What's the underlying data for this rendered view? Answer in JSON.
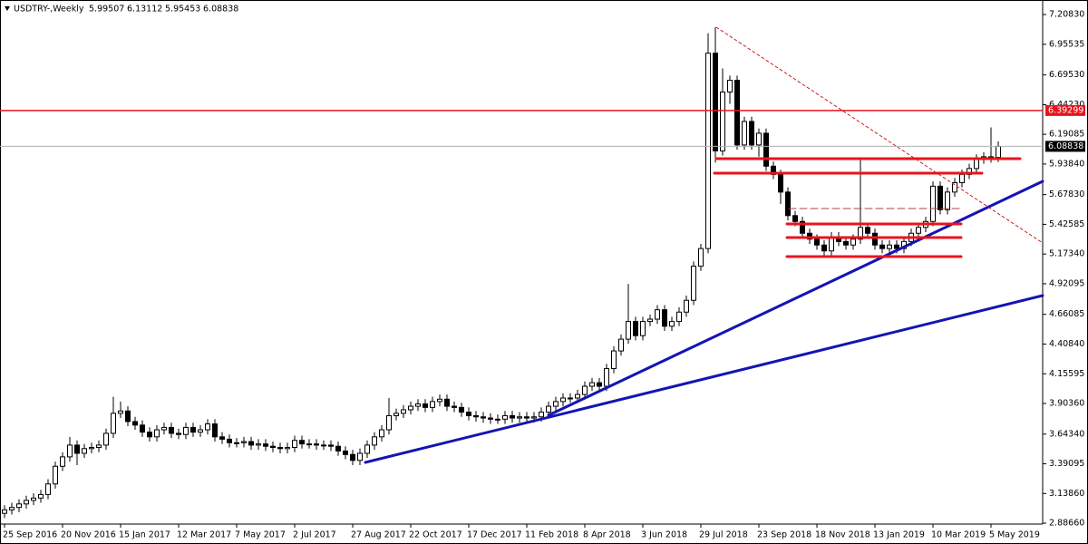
{
  "chart_data": {
    "type": "candlestick",
    "title": "USDTRY-,Weekly",
    "categories": [
      "25 Sep 2016",
      null,
      null,
      null,
      null,
      null,
      null,
      null,
      "20 Nov 2016",
      null,
      null,
      null,
      null,
      null,
      null,
      null,
      "15 Jan 2017",
      null,
      null,
      null,
      null,
      null,
      null,
      null,
      "12 Mar 2017",
      null,
      null,
      null,
      null,
      null,
      null,
      null,
      "7 May 2017",
      null,
      null,
      null,
      null,
      null,
      null,
      null,
      "2 Jul 2017",
      null,
      null,
      null,
      null,
      null,
      null,
      null,
      "27 Aug 2017",
      null,
      null,
      null,
      null,
      null,
      null,
      null,
      "22 Oct 2017",
      null,
      null,
      null,
      null,
      null,
      null,
      null,
      "17 Dec 2017",
      null,
      null,
      null,
      null,
      null,
      null,
      null,
      "11 Feb 2018",
      null,
      null,
      null,
      null,
      null,
      null,
      null,
      "8 Apr 2018",
      null,
      null,
      null,
      null,
      null,
      null,
      null,
      "3 Jun 2018",
      null,
      null,
      null,
      null,
      null,
      null,
      null,
      "29 Jul 2018",
      null,
      null,
      null,
      null,
      null,
      null,
      null,
      "23 Sep 2018",
      null,
      null,
      null,
      null,
      null,
      null,
      null,
      "18 Nov 2018",
      null,
      null,
      null,
      null,
      null,
      null,
      null,
      "13 Jan 2019",
      null,
      null,
      null,
      null,
      null,
      null,
      null,
      "10 Mar 2019",
      null,
      null,
      null,
      null,
      null,
      null,
      null,
      "5 May 2019",
      null
    ],
    "open": [
      2.97,
      3.0,
      3.02,
      3.05,
      3.08,
      3.1,
      3.13,
      3.22,
      3.37,
      3.45,
      3.55,
      3.48,
      3.52,
      3.53,
      3.55,
      3.65,
      3.82,
      3.84,
      3.75,
      3.72,
      3.66,
      3.62,
      3.68,
      3.7,
      3.65,
      3.64,
      3.7,
      3.66,
      3.68,
      3.73,
      3.62,
      3.6,
      3.57,
      3.57,
      3.58,
      3.55,
      3.56,
      3.54,
      3.53,
      3.52,
      3.53,
      3.59,
      3.56,
      3.56,
      3.55,
      3.55,
      3.54,
      3.5,
      3.47,
      3.42,
      3.48,
      3.55,
      3.62,
      3.68,
      3.8,
      3.82,
      3.85,
      3.88,
      3.9,
      3.87,
      3.92,
      3.94,
      3.88,
      3.87,
      3.83,
      3.8,
      3.79,
      3.78,
      3.77,
      3.77,
      3.8,
      3.78,
      3.79,
      3.78,
      3.79,
      3.83,
      3.88,
      3.92,
      3.95,
      3.95,
      3.98,
      4.05,
      4.08,
      4.05,
      4.2,
      4.35,
      4.45,
      4.6,
      4.48,
      4.6,
      4.62,
      4.7,
      4.56,
      4.6,
      4.68,
      4.78,
      5.07,
      5.22,
      6.88,
      6.05,
      6.55,
      6.65,
      6.1,
      6.3,
      6.1,
      6.2,
      5.92,
      5.85,
      5.7,
      5.5,
      5.45,
      5.35,
      5.3,
      5.25,
      5.2,
      5.32,
      5.28,
      5.25,
      5.3,
      5.4,
      5.35,
      5.25,
      5.22,
      5.25,
      5.22,
      5.28,
      5.35,
      5.4,
      5.45,
      5.75,
      5.55,
      5.7,
      5.78,
      5.85,
      5.9,
      5.98,
      6.0,
      5.99507
    ],
    "high": [
      3.04,
      3.06,
      3.09,
      3.12,
      3.14,
      3.17,
      3.26,
      3.41,
      3.49,
      3.62,
      3.59,
      3.56,
      3.57,
      3.59,
      3.69,
      3.96,
      3.92,
      3.88,
      3.79,
      3.76,
      3.7,
      3.72,
      3.74,
      3.74,
      3.69,
      3.74,
      3.74,
      3.72,
      3.77,
      3.77,
      3.66,
      3.64,
      3.61,
      3.62,
      3.62,
      3.6,
      3.6,
      3.58,
      3.57,
      3.57,
      3.63,
      3.63,
      3.6,
      3.6,
      3.59,
      3.59,
      3.58,
      3.54,
      3.51,
      3.52,
      3.59,
      3.66,
      3.72,
      3.95,
      3.86,
      3.89,
      3.92,
      3.94,
      3.94,
      3.96,
      3.98,
      3.98,
      3.92,
      3.91,
      3.87,
      3.84,
      3.83,
      3.82,
      3.81,
      3.84,
      3.84,
      3.83,
      3.83,
      3.83,
      3.87,
      3.92,
      3.96,
      3.99,
      3.99,
      4.02,
      4.09,
      4.12,
      4.12,
      4.24,
      4.39,
      4.49,
      4.92,
      4.64,
      4.64,
      4.66,
      4.74,
      4.74,
      4.64,
      4.72,
      4.82,
      5.11,
      5.26,
      7.05,
      7.1,
      6.75,
      6.69,
      6.69,
      6.34,
      6.34,
      6.24,
      6.24,
      5.96,
      5.89,
      5.74,
      5.54,
      5.49,
      5.39,
      5.34,
      5.29,
      5.36,
      5.36,
      5.32,
      5.34,
      5.98,
      5.44,
      5.39,
      5.29,
      5.29,
      5.29,
      5.32,
      5.39,
      5.44,
      5.49,
      5.79,
      5.79,
      5.74,
      5.82,
      5.89,
      5.94,
      6.02,
      6.04,
      6.25,
      6.13112
    ],
    "low": [
      2.93,
      2.96,
      2.98,
      3.01,
      3.04,
      3.06,
      3.09,
      3.18,
      3.33,
      3.41,
      3.38,
      3.44,
      3.48,
      3.49,
      3.51,
      3.61,
      3.78,
      3.71,
      3.68,
      3.62,
      3.58,
      3.58,
      3.64,
      3.61,
      3.6,
      3.6,
      3.62,
      3.62,
      3.64,
      3.58,
      3.56,
      3.53,
      3.53,
      3.53,
      3.51,
      3.51,
      3.5,
      3.49,
      3.48,
      3.48,
      3.49,
      3.52,
      3.52,
      3.51,
      3.51,
      3.5,
      3.46,
      3.43,
      3.38,
      3.38,
      3.44,
      3.51,
      3.58,
      3.64,
      3.76,
      3.78,
      3.81,
      3.84,
      3.83,
      3.83,
      3.88,
      3.84,
      3.83,
      3.79,
      3.76,
      3.75,
      3.74,
      3.73,
      3.73,
      3.73,
      3.74,
      3.74,
      3.74,
      3.74,
      3.75,
      3.79,
      3.84,
      3.88,
      3.91,
      3.91,
      3.94,
      4.01,
      4.01,
      4.01,
      4.16,
      4.31,
      4.41,
      4.44,
      4.44,
      4.56,
      4.58,
      4.52,
      4.52,
      4.56,
      4.64,
      4.74,
      5.03,
      5.18,
      5.95,
      6.01,
      6.45,
      6.06,
      6.06,
      6.06,
      6.0,
      5.88,
      5.81,
      5.6,
      5.46,
      5.41,
      5.31,
      5.26,
      5.21,
      5.14,
      5.16,
      5.24,
      5.21,
      5.21,
      5.26,
      5.31,
      5.21,
      5.18,
      5.18,
      5.18,
      5.18,
      5.24,
      5.31,
      5.36,
      5.41,
      5.51,
      5.51,
      5.66,
      5.74,
      5.81,
      5.86,
      5.94,
      5.95,
      5.95453
    ],
    "close": [
      3.0,
      3.02,
      3.05,
      3.08,
      3.1,
      3.13,
      3.22,
      3.37,
      3.45,
      3.55,
      3.48,
      3.52,
      3.53,
      3.55,
      3.65,
      3.82,
      3.84,
      3.75,
      3.72,
      3.66,
      3.62,
      3.68,
      3.7,
      3.65,
      3.64,
      3.7,
      3.66,
      3.68,
      3.73,
      3.62,
      3.6,
      3.57,
      3.57,
      3.58,
      3.55,
      3.56,
      3.54,
      3.53,
      3.52,
      3.53,
      3.59,
      3.56,
      3.56,
      3.55,
      3.55,
      3.54,
      3.5,
      3.47,
      3.42,
      3.48,
      3.55,
      3.62,
      3.68,
      3.8,
      3.82,
      3.85,
      3.88,
      3.9,
      3.87,
      3.92,
      3.94,
      3.88,
      3.87,
      3.83,
      3.8,
      3.79,
      3.78,
      3.77,
      3.77,
      3.8,
      3.78,
      3.79,
      3.78,
      3.79,
      3.83,
      3.88,
      3.92,
      3.95,
      3.95,
      3.98,
      4.05,
      4.08,
      4.05,
      4.2,
      4.35,
      4.45,
      4.6,
      4.48,
      4.6,
      4.62,
      4.7,
      4.56,
      4.6,
      4.68,
      4.78,
      5.07,
      5.22,
      6.88,
      6.05,
      6.55,
      6.65,
      6.1,
      6.3,
      6.1,
      6.2,
      5.92,
      5.85,
      5.7,
      5.5,
      5.45,
      5.35,
      5.3,
      5.25,
      5.2,
      5.32,
      5.28,
      5.25,
      5.3,
      5.4,
      5.35,
      5.25,
      5.22,
      5.25,
      5.22,
      5.28,
      5.35,
      5.4,
      5.45,
      5.75,
      5.55,
      5.7,
      5.78,
      5.85,
      5.9,
      5.98,
      6.0,
      5.99507,
      6.08838
    ],
    "ylim": [
      2.879,
      7.332
    ],
    "yticks": [
      {
        "value": 7.2083,
        "label": "7.20830"
      },
      {
        "value": 6.95535,
        "label": "6.95535"
      },
      {
        "value": 6.6953,
        "label": "6.69530"
      },
      {
        "value": 6.4423,
        "label": "6.44230"
      },
      {
        "value": 6.19085,
        "label": "6.19085"
      },
      {
        "value": 5.9384,
        "label": "5.93840"
      },
      {
        "value": 5.6783,
        "label": "5.67830"
      },
      {
        "value": 5.42585,
        "label": "5.42585"
      },
      {
        "value": 5.1734,
        "label": "5.17340"
      },
      {
        "value": 4.92095,
        "label": "4.92095"
      },
      {
        "value": 4.66085,
        "label": "4.66085"
      },
      {
        "value": 4.4084,
        "label": "4.40840"
      },
      {
        "value": 4.15595,
        "label": "4.15595"
      },
      {
        "value": 3.9036,
        "label": "3.90360"
      },
      {
        "value": 3.6434,
        "label": "3.64340"
      },
      {
        "value": 3.39095,
        "label": "3.39095"
      },
      {
        "value": 3.1386,
        "label": "3.13860"
      },
      {
        "value": 2.8866,
        "label": "2.88660"
      }
    ],
    "hline": 6.39299,
    "hline_color": "#e8141e",
    "grid": false
  }
}
